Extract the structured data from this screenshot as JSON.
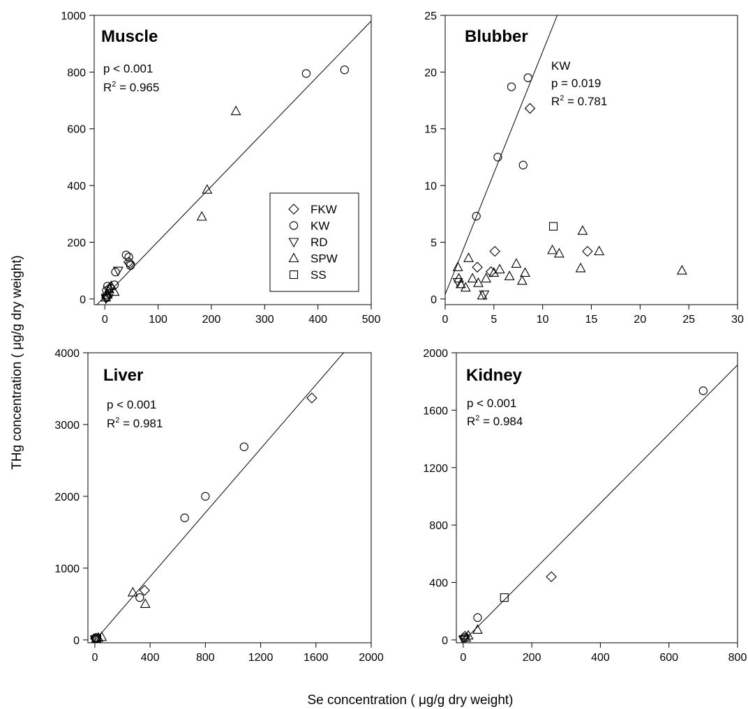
{
  "xlabel": "Se concentration ( μg/g dry weight)",
  "ylabel": "THg concentration ( μg/g dry weight)",
  "legend": {
    "placement": "inside Muscle panel, lower-right",
    "entries": [
      {
        "code": "FKW",
        "marker": "diamond"
      },
      {
        "code": "KW",
        "marker": "circle"
      },
      {
        "code": "RD",
        "marker": "triangle-down"
      },
      {
        "code": "SPW",
        "marker": "triangle-up"
      },
      {
        "code": "SS",
        "marker": "square"
      }
    ]
  },
  "chart_data": [
    {
      "type": "scatter",
      "title": "Muscle",
      "stats": {
        "p": "p < 0.001",
        "r2_value": " = 0.965"
      },
      "xlim": [
        -20,
        500
      ],
      "ylim": [
        -20,
        1000
      ],
      "xticks": [
        0,
        100,
        200,
        300,
        400,
        500
      ],
      "yticks": [
        0,
        200,
        400,
        600,
        800,
        1000
      ],
      "regression": {
        "x": [
          -20,
          500
        ],
        "y": [
          -30,
          980
        ]
      },
      "series": [
        {
          "name": "FKW",
          "marker": "diamond",
          "points": [
            [
              3,
              5
            ],
            [
              5,
              10
            ],
            [
              45,
              130
            ],
            [
              47,
              125
            ],
            [
              10,
              40
            ]
          ]
        },
        {
          "name": "KW",
          "marker": "circle",
          "points": [
            [
              378,
              795
            ],
            [
              450,
              808
            ],
            [
              40,
              155
            ],
            [
              45,
              148
            ],
            [
              20,
              95
            ],
            [
              18,
              50
            ],
            [
              5,
              45
            ],
            [
              3,
              30
            ],
            [
              8,
              20
            ],
            [
              48,
              118
            ]
          ]
        },
        {
          "name": "RD",
          "marker": "triangle-down",
          "points": [
            [
              25,
              100
            ],
            [
              3,
              5
            ],
            [
              2,
              2
            ]
          ]
        },
        {
          "name": "SPW",
          "marker": "triangle-up",
          "points": [
            [
              246,
              662
            ],
            [
              192,
              385
            ],
            [
              182,
              290
            ],
            [
              18,
              25
            ],
            [
              12,
              45
            ],
            [
              8,
              35
            ],
            [
              5,
              15
            ],
            [
              2,
              5
            ]
          ]
        },
        {
          "name": "SS",
          "marker": "square",
          "points": []
        }
      ]
    },
    {
      "type": "scatter",
      "title": "Blubber",
      "stats": {
        "label": "KW",
        "p": "p = 0.019",
        "r2_value": " = 0.781"
      },
      "xlim": [
        0,
        30
      ],
      "ylim": [
        -0.5,
        25
      ],
      "xticks": [
        0,
        5,
        10,
        15,
        20,
        25,
        30
      ],
      "yticks": [
        0,
        5,
        10,
        15,
        20,
        25
      ],
      "regression": {
        "x": [
          0,
          11.5
        ],
        "y": [
          0.4,
          25
        ]
      },
      "series": [
        {
          "name": "FKW",
          "marker": "diamond",
          "points": [
            [
              8.7,
              16.8
            ],
            [
              5.1,
              4.2
            ],
            [
              3.3,
              2.8
            ],
            [
              4.7,
              2.4
            ],
            [
              14.6,
              4.2
            ]
          ]
        },
        {
          "name": "KW",
          "marker": "circle",
          "points": [
            [
              3.2,
              7.3
            ],
            [
              5.4,
              12.5
            ],
            [
              6.8,
              18.7
            ],
            [
              8.5,
              19.5
            ],
            [
              8.0,
              11.8
            ]
          ]
        },
        {
          "name": "RD",
          "marker": "triangle-down",
          "points": [
            [
              4.0,
              0.4
            ],
            [
              1.3,
              1.5
            ]
          ]
        },
        {
          "name": "SPW",
          "marker": "triangle-up",
          "points": [
            [
              1.3,
              2.8
            ],
            [
              1.4,
              1.8
            ],
            [
              1.6,
              1.3
            ],
            [
              2.1,
              1.0
            ],
            [
              2.4,
              3.6
            ],
            [
              2.8,
              1.8
            ],
            [
              3.4,
              1.4
            ],
            [
              3.8,
              0.3
            ],
            [
              4.2,
              1.8
            ],
            [
              5.0,
              2.3
            ],
            [
              5.6,
              2.6
            ],
            [
              6.6,
              2.0
            ],
            [
              7.3,
              3.1
            ],
            [
              7.9,
              1.6
            ],
            [
              8.2,
              2.3
            ],
            [
              11.0,
              4.3
            ],
            [
              11.7,
              4.0
            ],
            [
              13.9,
              2.7
            ],
            [
              14.1,
              6.0
            ],
            [
              15.8,
              4.2
            ],
            [
              24.3,
              2.5
            ]
          ]
        },
        {
          "name": "SS",
          "marker": "square",
          "points": [
            [
              11.1,
              6.4
            ]
          ]
        }
      ]
    },
    {
      "type": "scatter",
      "title": "Liver",
      "stats": {
        "p": "p < 0.001",
        "r2_value": " = 0.981"
      },
      "xlim": [
        -50,
        2000
      ],
      "ylim": [
        -40,
        4000
      ],
      "xticks": [
        0,
        400,
        800,
        1200,
        1600,
        2000
      ],
      "yticks": [
        0,
        1000,
        2000,
        3000,
        4000
      ],
      "regression": {
        "x": [
          0,
          1800
        ],
        "y": [
          -10,
          4000
        ]
      },
      "series": [
        {
          "name": "FKW",
          "marker": "diamond",
          "points": [
            [
              1570,
              3370
            ],
            [
              360,
              690
            ],
            [
              5,
              20
            ]
          ]
        },
        {
          "name": "KW",
          "marker": "circle",
          "points": [
            [
              1080,
              2690
            ],
            [
              800,
              2000
            ],
            [
              650,
              1700
            ],
            [
              325,
              590
            ],
            [
              10,
              30
            ]
          ]
        },
        {
          "name": "RD",
          "marker": "triangle-down",
          "points": [
            [
              5,
              10
            ],
            [
              2,
              2
            ]
          ]
        },
        {
          "name": "SPW",
          "marker": "triangle-up",
          "points": [
            [
              275,
              660
            ],
            [
              365,
              500
            ],
            [
              50,
              40
            ],
            [
              25,
              30
            ],
            [
              10,
              20
            ]
          ]
        },
        {
          "name": "SS",
          "marker": "square",
          "points": [
            [
              15,
              25
            ]
          ]
        }
      ]
    },
    {
      "type": "scatter",
      "title": "Kidney",
      "stats": {
        "p": "p < 0.001",
        "r2_value": " = 0.984"
      },
      "xlim": [
        -20,
        800
      ],
      "ylim": [
        -20,
        2000
      ],
      "xticks": [
        0,
        200,
        400,
        600,
        800
      ],
      "yticks": [
        0,
        400,
        800,
        1200,
        1600,
        2000
      ],
      "regression": {
        "x": [
          0,
          800
        ],
        "y": [
          -10,
          1915
        ]
      },
      "series": [
        {
          "name": "FKW",
          "marker": "diamond",
          "points": [
            [
              257,
              440
            ],
            [
              5,
              25
            ]
          ]
        },
        {
          "name": "KW",
          "marker": "circle",
          "points": [
            [
              700,
              1735
            ],
            [
              42,
              155
            ],
            [
              5,
              15
            ]
          ]
        },
        {
          "name": "RD",
          "marker": "triangle-down",
          "points": [
            [
              3,
              5
            ],
            [
              1,
              1
            ]
          ]
        },
        {
          "name": "SPW",
          "marker": "triangle-up",
          "points": [
            [
              42,
              70
            ],
            [
              15,
              30
            ],
            [
              8,
              15
            ]
          ]
        },
        {
          "name": "SS",
          "marker": "square",
          "points": [
            [
              120,
              295
            ]
          ]
        }
      ]
    }
  ]
}
